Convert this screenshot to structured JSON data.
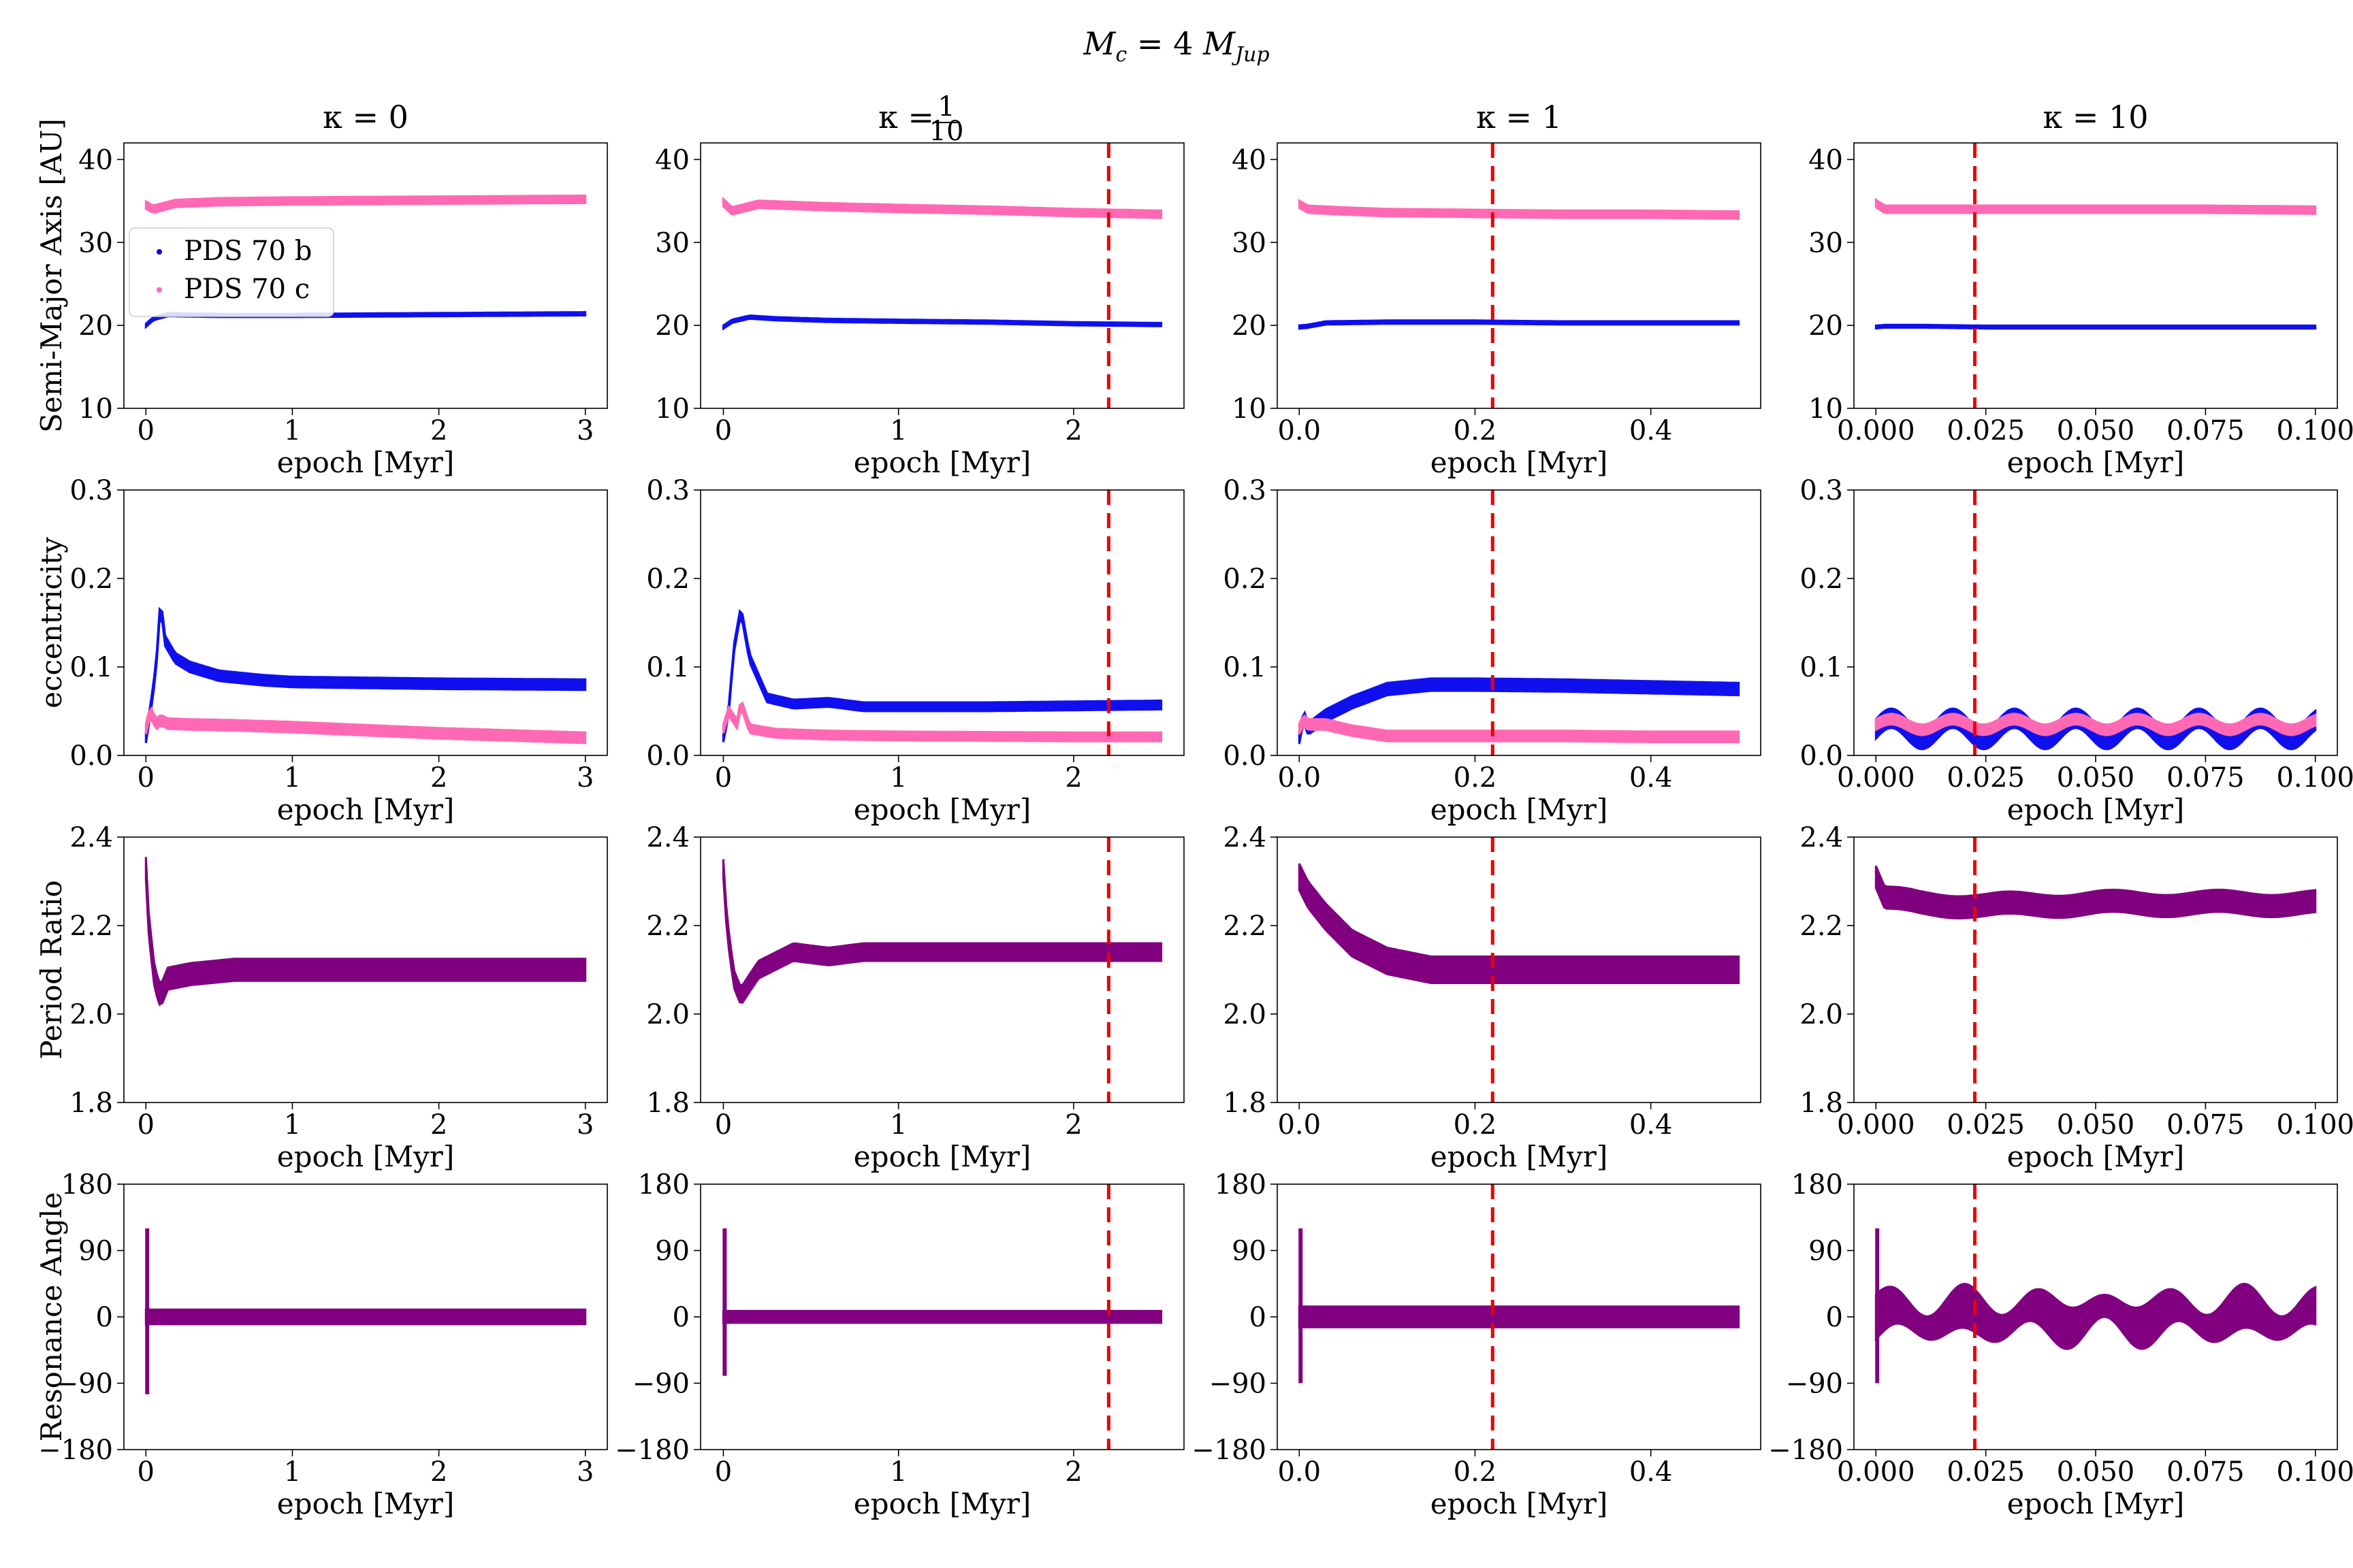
{
  "figure": {
    "suptitle": "M_c = 4 M_Jup",
    "suptitle_parts": {
      "lhs": "M",
      "lhs_sub": "c",
      "eq": " = 4 ",
      "rhs": "M",
      "rhs_sub": "Jup"
    },
    "columns": [
      {
        "title": "κ = 0",
        "title_kind": "plain",
        "xticks": [
          "0",
          "1",
          "2",
          "3"
        ],
        "xvals": [
          0,
          1,
          2,
          3
        ],
        "xlim": [
          -0.15,
          3.15
        ],
        "vline": null
      },
      {
        "title_prefix": "κ = ",
        "title_num": "1",
        "title_den": "10",
        "title_kind": "fraction",
        "xticks": [
          "0",
          "1",
          "2"
        ],
        "xvals": [
          0,
          1,
          2
        ],
        "xlim": [
          -0.13,
          2.63
        ],
        "vline": 2.2
      },
      {
        "title": "κ = 1",
        "title_kind": "plain",
        "xticks": [
          "0.0",
          "0.2",
          "0.4"
        ],
        "xvals": [
          0,
          0.2,
          0.4
        ],
        "xlim": [
          -0.025,
          0.525
        ],
        "vline": 0.22
      },
      {
        "title": "κ = 10",
        "title_kind": "plain",
        "xticks": [
          "0.000",
          "0.025",
          "0.050",
          "0.075",
          "0.100"
        ],
        "xvals": [
          0,
          0.025,
          0.05,
          0.075,
          0.1
        ],
        "xlim": [
          -0.005,
          0.105
        ],
        "vline": 0.0225
      }
    ],
    "rows": [
      {
        "ylabel": "Semi-Major Axis [AU]",
        "yticks": [
          "10",
          "20",
          "30",
          "40"
        ],
        "yvals": [
          10,
          20,
          30,
          40
        ],
        "ylim": [
          10,
          42
        ]
      },
      {
        "ylabel": "eccentricity",
        "yticks": [
          "0.0",
          "0.1",
          "0.2",
          "0.3"
        ],
        "yvals": [
          0,
          0.1,
          0.2,
          0.3
        ],
        "ylim": [
          0,
          0.3
        ]
      },
      {
        "ylabel": "Period Ratio",
        "yticks": [
          "1.8",
          "2.0",
          "2.2",
          "2.4"
        ],
        "yvals": [
          1.8,
          2.0,
          2.2,
          2.4
        ],
        "ylim": [
          1.8,
          2.4
        ]
      },
      {
        "ylabel": "Resonance Angle",
        "yticks": [
          "−180",
          "−90",
          "0",
          "90",
          "180"
        ],
        "yvals": [
          -180,
          -90,
          0,
          90,
          180
        ],
        "ylim": [
          -180,
          180
        ]
      }
    ],
    "xlabel": "epoch [Myr]",
    "legend": {
      "placement": "center-left of first panel",
      "entries": [
        {
          "label": "PDS 70 b",
          "color": "#0000ee"
        },
        {
          "label": "PDS 70 c",
          "color": "#ff69b4"
        }
      ]
    },
    "colors": {
      "planet_b": "#1010ee",
      "planet_c": "#ff69b4",
      "ratio": "#800080",
      "vline": "#ee0000"
    }
  },
  "chart_data": {
    "type": "line",
    "layout": "4x4 grid of scatter-style time series",
    "panels": [
      {
        "row": 0,
        "col": 0,
        "series": [
          {
            "name": "PDS 70 c",
            "x": [
              0,
              0.05,
              0.2,
              0.5,
              1,
              2,
              3
            ],
            "y": [
              34.5,
              34.0,
              34.7,
              34.9,
              35.0,
              35.1,
              35.2
            ],
            "band": 0.9
          },
          {
            "name": "PDS 70 b",
            "x": [
              0,
              0.05,
              0.15,
              0.5,
              1,
              2,
              3
            ],
            "y": [
              20.0,
              20.8,
              21.3,
              21.2,
              21.2,
              21.3,
              21.4
            ],
            "band": 0.4
          }
        ]
      },
      {
        "row": 0,
        "col": 1,
        "series": [
          {
            "name": "PDS 70 c",
            "x": [
              0,
              0.05,
              0.2,
              0.6,
              1,
              1.5,
              2,
              2.5
            ],
            "y": [
              34.8,
              33.8,
              34.6,
              34.3,
              34.1,
              33.9,
              33.6,
              33.4
            ],
            "band": 0.9
          },
          {
            "name": "PDS 70 b",
            "x": [
              0,
              0.05,
              0.15,
              0.3,
              0.6,
              1,
              1.5,
              2,
              2.5
            ],
            "y": [
              19.8,
              20.5,
              21.0,
              20.8,
              20.6,
              20.5,
              20.4,
              20.2,
              20.1
            ],
            "band": 0.4
          }
        ]
      },
      {
        "row": 0,
        "col": 2,
        "series": [
          {
            "name": "PDS 70 c",
            "x": [
              0,
              0.01,
              0.05,
              0.1,
              0.2,
              0.3,
              0.4,
              0.5
            ],
            "y": [
              34.6,
              34.0,
              33.8,
              33.6,
              33.5,
              33.4,
              33.4,
              33.3
            ],
            "band": 0.9
          },
          {
            "name": "PDS 70 b",
            "x": [
              0,
              0.01,
              0.03,
              0.1,
              0.2,
              0.3,
              0.4,
              0.5
            ],
            "y": [
              19.8,
              19.9,
              20.3,
              20.4,
              20.4,
              20.3,
              20.3,
              20.3
            ],
            "band": 0.4
          }
        ]
      },
      {
        "row": 0,
        "col": 3,
        "series": [
          {
            "name": "PDS 70 c",
            "x": [
              0,
              0.002,
              0.01,
              0.025,
              0.05,
              0.075,
              0.1
            ],
            "y": [
              34.7,
              34.0,
              34.0,
              34.0,
              34.0,
              34.0,
              33.9
            ],
            "band": 0.9
          },
          {
            "name": "PDS 70 b",
            "x": [
              0,
              0.002,
              0.01,
              0.025,
              0.05,
              0.075,
              0.1
            ],
            "y": [
              19.8,
              19.9,
              19.9,
              19.8,
              19.8,
              19.8,
              19.8
            ],
            "band": 0.35
          }
        ]
      },
      {
        "row": 1,
        "col": 0,
        "series": [
          {
            "name": "PDS 70 b",
            "x": [
              0,
              0.03,
              0.07,
              0.1,
              0.13,
              0.2,
              0.3,
              0.5,
              0.8,
              1,
              2,
              3
            ],
            "y": [
              0.02,
              0.05,
              0.1,
              0.175,
              0.13,
              0.11,
              0.1,
              0.09,
              0.085,
              0.083,
              0.081,
              0.08
            ],
            "band": 0.012
          },
          {
            "name": "PDS 70 c",
            "x": [
              0,
              0.03,
              0.07,
              0.1,
              0.15,
              0.3,
              0.6,
              1,
              2,
              3
            ],
            "y": [
              0.03,
              0.05,
              0.035,
              0.04,
              0.036,
              0.035,
              0.034,
              0.032,
              0.025,
              0.02
            ],
            "band": 0.012
          }
        ]
      },
      {
        "row": 1,
        "col": 1,
        "series": [
          {
            "name": "PDS 70 b",
            "x": [
              0,
              0.03,
              0.06,
              0.1,
              0.15,
              0.25,
              0.4,
              0.6,
              0.8,
              1,
              1.5,
              2,
              2.5
            ],
            "y": [
              0.02,
              0.05,
              0.12,
              0.165,
              0.11,
              0.065,
              0.058,
              0.06,
              0.055,
              0.055,
              0.055,
              0.056,
              0.057
            ],
            "band": 0.01
          },
          {
            "name": "PDS 70 c",
            "x": [
              0,
              0.03,
              0.08,
              0.1,
              0.15,
              0.3,
              0.6,
              1,
              2,
              2.5
            ],
            "y": [
              0.03,
              0.05,
              0.035,
              0.06,
              0.03,
              0.025,
              0.023,
              0.022,
              0.021,
              0.021
            ],
            "band": 0.01
          }
        ]
      },
      {
        "row": 1,
        "col": 2,
        "series": [
          {
            "name": "PDS 70 b",
            "x": [
              0,
              0.005,
              0.01,
              0.03,
              0.06,
              0.1,
              0.15,
              0.2,
              0.3,
              0.4,
              0.5
            ],
            "y": [
              0.02,
              0.045,
              0.03,
              0.045,
              0.06,
              0.075,
              0.08,
              0.08,
              0.079,
              0.077,
              0.075
            ],
            "band": 0.014
          },
          {
            "name": "PDS 70 c",
            "x": [
              0,
              0.005,
              0.01,
              0.03,
              0.06,
              0.1,
              0.2,
              0.3,
              0.4,
              0.5
            ],
            "y": [
              0.03,
              0.04,
              0.035,
              0.035,
              0.028,
              0.022,
              0.022,
              0.022,
              0.021,
              0.021
            ],
            "band": 0.012
          }
        ]
      },
      {
        "row": 1,
        "col": 3,
        "series": [
          {
            "name": "PDS 70 b",
            "x": [
              0,
              0.1
            ],
            "y": [
              0.03,
              0.03
            ],
            "band": 0.022,
            "osc": {
              "amp": 0.012,
              "period": 0.014
            }
          },
          {
            "name": "PDS 70 c",
            "x": [
              0,
              0.1
            ],
            "y": [
              0.035,
              0.035
            ],
            "band": 0.012,
            "osc": {
              "amp": 0.006,
              "period": 0.014
            }
          }
        ]
      },
      {
        "row": 2,
        "col": 0,
        "series": [
          {
            "name": "Period Ratio",
            "x": [
              0,
              0.02,
              0.06,
              0.1,
              0.15,
              0.3,
              0.6,
              1,
              2,
              3
            ],
            "y": [
              2.33,
              2.2,
              2.08,
              2.04,
              2.08,
              2.09,
              2.1,
              2.1,
              2.1,
              2.1
            ],
            "band": 0.05
          }
        ]
      },
      {
        "row": 2,
        "col": 1,
        "series": [
          {
            "name": "Period Ratio",
            "x": [
              0,
              0.02,
              0.06,
              0.1,
              0.2,
              0.4,
              0.6,
              0.8,
              1,
              2,
              2.5
            ],
            "y": [
              2.33,
              2.2,
              2.08,
              2.04,
              2.1,
              2.14,
              2.13,
              2.14,
              2.14,
              2.14,
              2.14
            ],
            "band": 0.04
          }
        ]
      },
      {
        "row": 2,
        "col": 2,
        "series": [
          {
            "name": "Period Ratio",
            "x": [
              0,
              0.01,
              0.03,
              0.06,
              0.1,
              0.15,
              0.2,
              0.3,
              0.4,
              0.5
            ],
            "y": [
              2.31,
              2.27,
              2.22,
              2.16,
              2.12,
              2.1,
              2.1,
              2.1,
              2.1,
              2.1
            ],
            "band": 0.06
          }
        ]
      },
      {
        "row": 2,
        "col": 3,
        "series": [
          {
            "name": "Period Ratio",
            "x": [
              0,
              0.002,
              0.01,
              0.025,
              0.05,
              0.075,
              0.1
            ],
            "y": [
              2.31,
              2.26,
              2.25,
              2.245,
              2.25,
              2.25,
              2.25
            ],
            "band": 0.05,
            "osc": {
              "amp": 0.006,
              "period": 0.024
            }
          }
        ]
      },
      {
        "row": 3,
        "col": 0,
        "series": [
          {
            "name": "Resonance Angle",
            "x": [
              0,
              0.02,
              0.05,
              0.1,
              0.5,
              1,
              2,
              3
            ],
            "y": [
              0,
              0,
              0,
              0,
              0,
              0,
              0,
              0
            ],
            "band": 20,
            "spike": {
              "max": 120,
              "min": -105
            }
          }
        ]
      },
      {
        "row": 3,
        "col": 1,
        "series": [
          {
            "name": "Resonance Angle",
            "x": [
              0,
              0.02,
              0.05,
              0.1,
              0.5,
              1,
              2,
              2.5
            ],
            "y": [
              0,
              0,
              0,
              0,
              0,
              0,
              0,
              0
            ],
            "band": 16,
            "spike": {
              "max": 120,
              "min": -80
            }
          }
        ]
      },
      {
        "row": 3,
        "col": 2,
        "series": [
          {
            "name": "Resonance Angle",
            "x": [
              0,
              0.01,
              0.05,
              0.1,
              0.2,
              0.3,
              0.4,
              0.5
            ],
            "y": [
              0,
              0,
              0,
              0,
              0,
              0,
              0,
              0
            ],
            "band": 28,
            "spike": {
              "max": 120,
              "min": -90
            }
          }
        ]
      },
      {
        "row": 3,
        "col": 3,
        "series": [
          {
            "name": "Resonance Angle",
            "x": [
              0,
              0.1
            ],
            "y": [
              0,
              0
            ],
            "band": 60,
            "spike": {
              "max": 120,
              "min": -90
            },
            "osc": {
              "amp": 15,
              "period": 0.016
            }
          }
        ]
      }
    ]
  }
}
